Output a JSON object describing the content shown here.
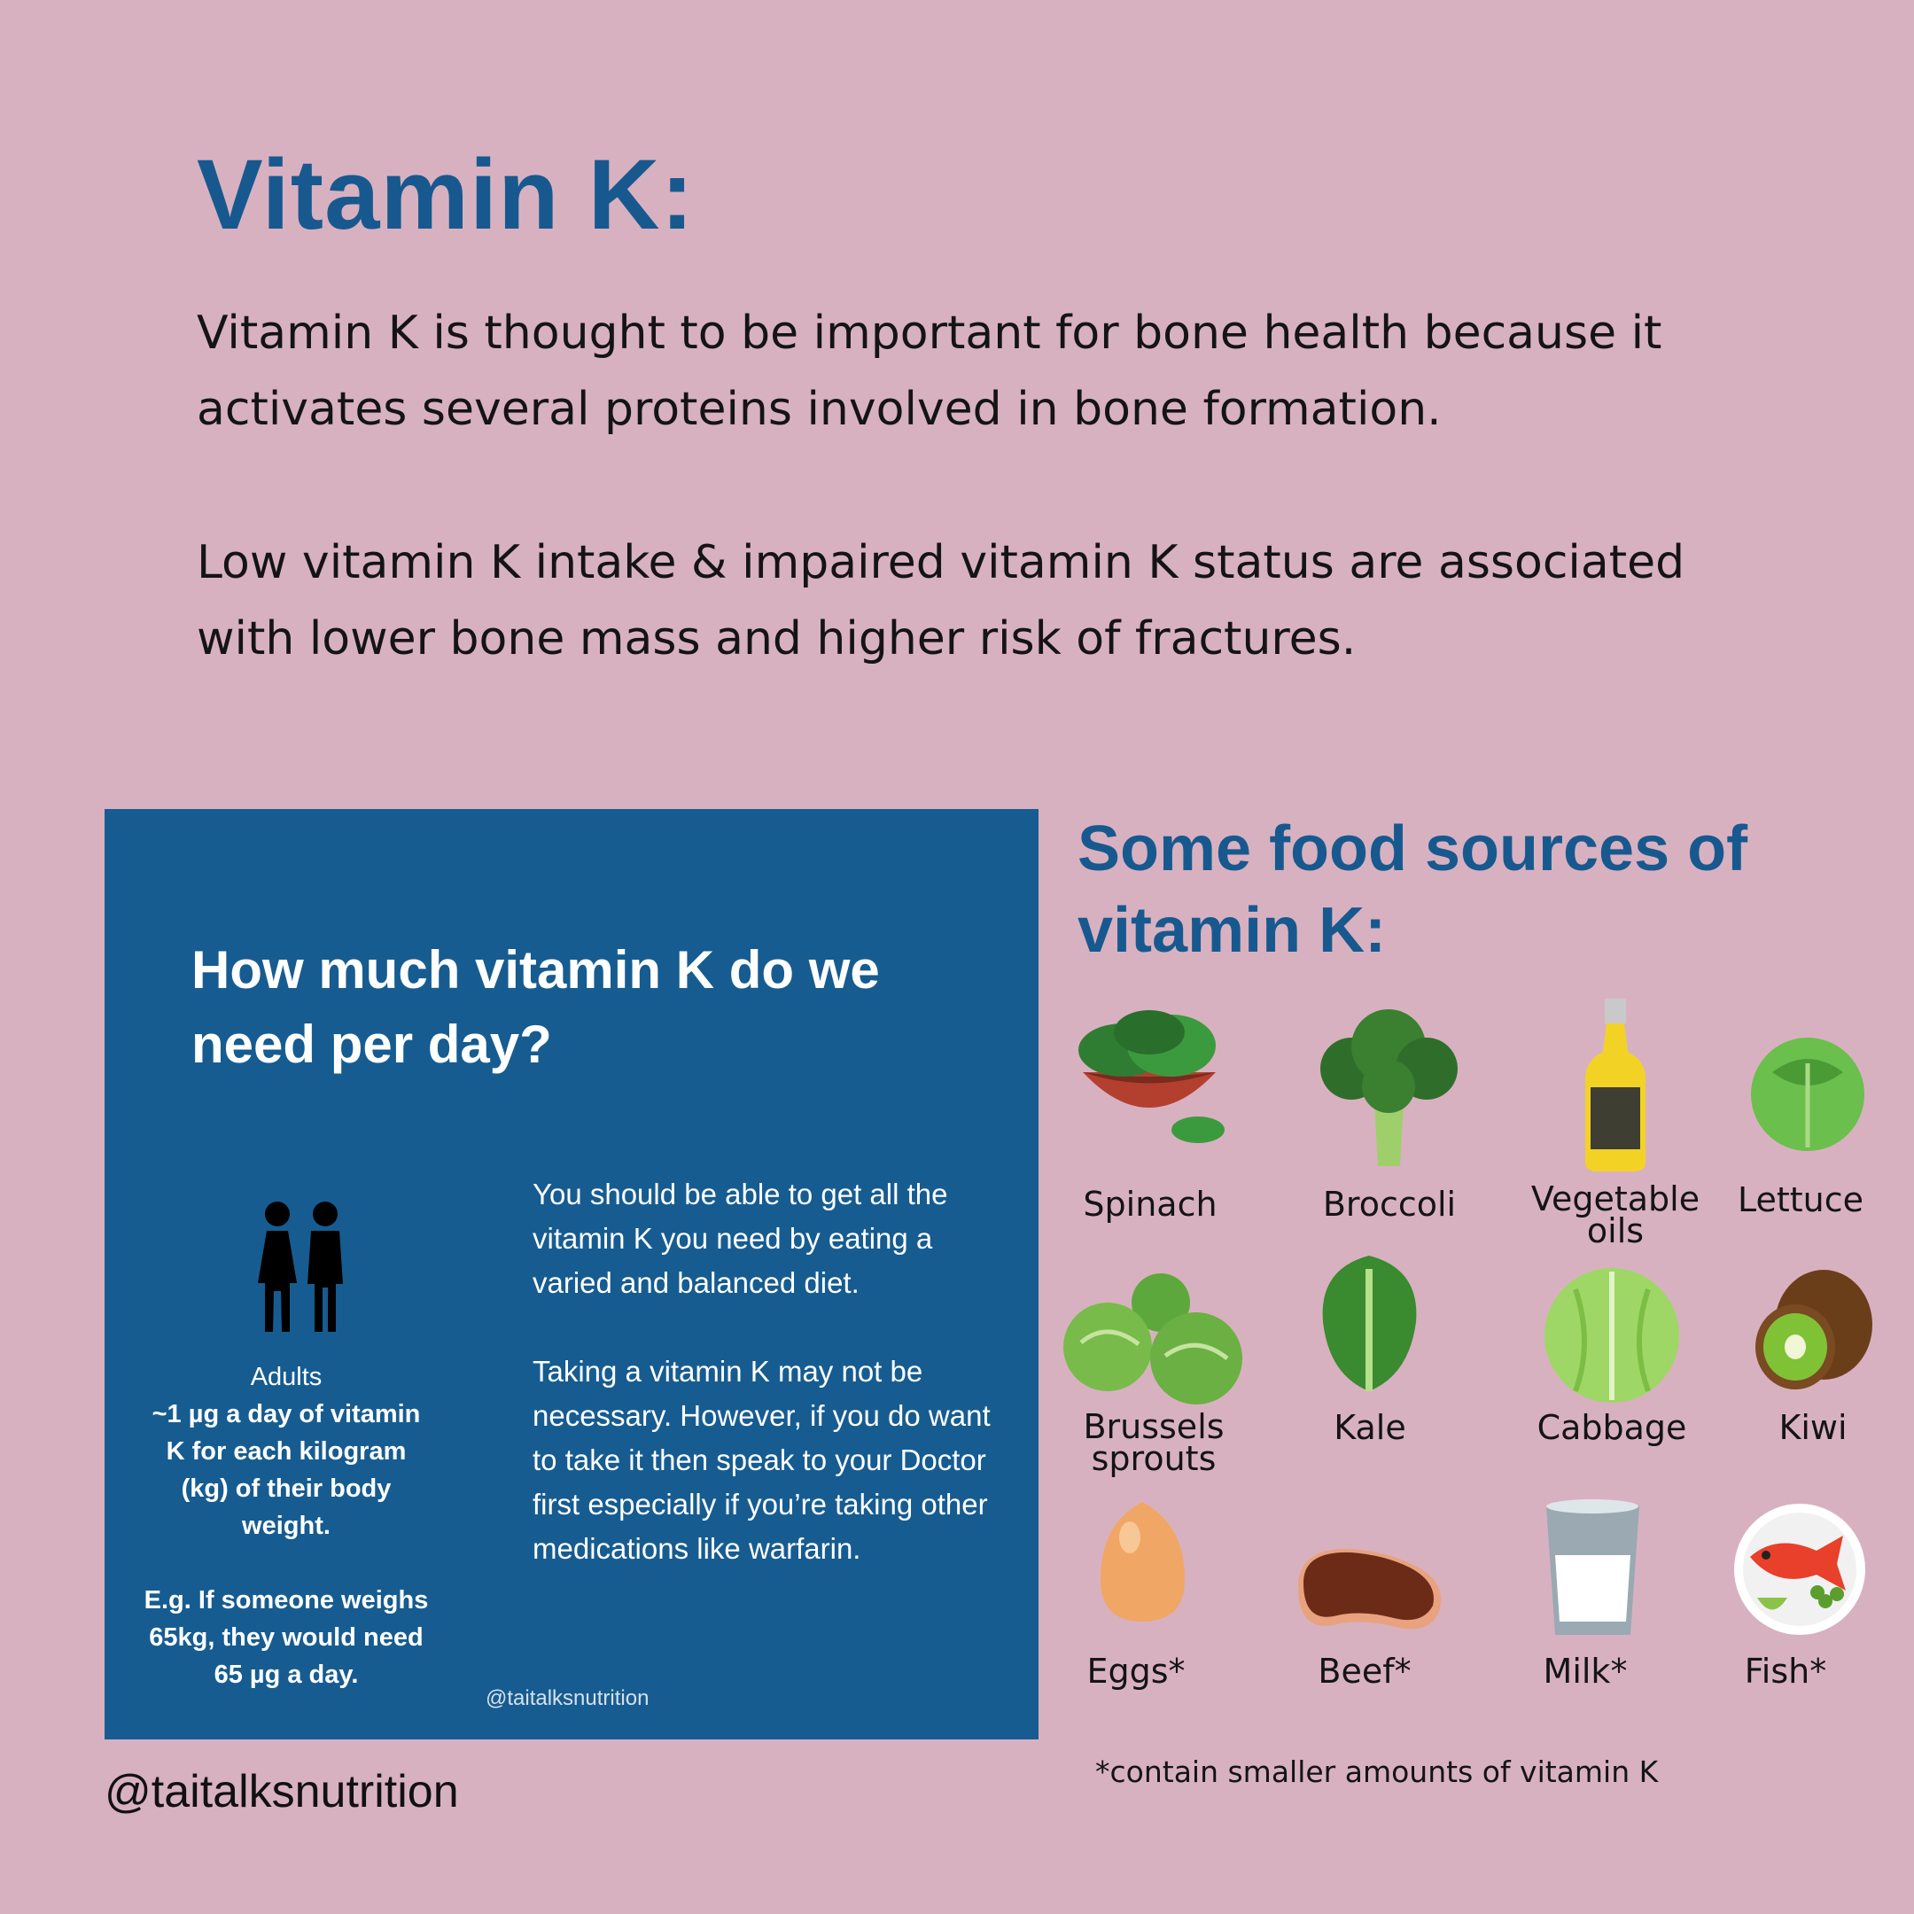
{
  "title": "Vitamin K:",
  "intro": {
    "paragraph1": "Vitamin K is thought to be important for bone health because it activates several proteins involved in bone formation.",
    "paragraph2": "Low vitamin K intake & impaired vitamin K status are associated with lower bone mass and higher risk of fractures."
  },
  "panel": {
    "title": "How much vitamin K do we need per day?",
    "adults_label": "Adults",
    "adults_dose": "~1 µg a day of vitamin K for each kilogram (kg) of their body weight.",
    "example": "E.g. If someone weighs 65kg, they would need 65 µg a day.",
    "text1": "You should be able to get all the vitamin K you need by eating a varied and balanced diet.",
    "text2": "Taking a vitamin K may not be necessary. However, if you do want to take it then speak to your Doctor first especially if you’re taking other medications like warfarin.",
    "handle": "@taitalksnutrition"
  },
  "handle": "@taitalksnutrition",
  "foods_heading": "Some food sources of vitamin K:",
  "foods": [
    {
      "name": "Spinach",
      "icon": "spinach-icon"
    },
    {
      "name": "Broccoli",
      "icon": "broccoli-icon"
    },
    {
      "name": "Vegetable oils",
      "icon": "oil-bottle-icon"
    },
    {
      "name": "Lettuce",
      "icon": "lettuce-icon"
    },
    {
      "name": "Brussels sprouts",
      "icon": "brussels-sprouts-icon"
    },
    {
      "name": "Kale",
      "icon": "kale-icon"
    },
    {
      "name": "Cabbage",
      "icon": "cabbage-icon"
    },
    {
      "name": "Kiwi",
      "icon": "kiwi-icon"
    },
    {
      "name": "Eggs*",
      "icon": "egg-icon"
    },
    {
      "name": "Beef*",
      "icon": "beef-icon"
    },
    {
      "name": "Milk*",
      "icon": "milk-icon"
    },
    {
      "name": "Fish*",
      "icon": "fish-icon"
    }
  ],
  "footnote": "*contain smaller amounts of vitamin K",
  "colors": {
    "background": "#d8b1c0",
    "heading_blue": "#17598f",
    "panel_blue": "#165c91"
  }
}
